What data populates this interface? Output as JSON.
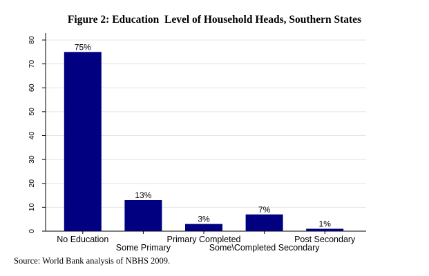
{
  "chart_data": {
    "type": "bar",
    "title": "Figure 2: Education  Level of Household Heads, Southern States",
    "categories": [
      "No Education",
      "Some Primary",
      "Primary Completed",
      "Some\\Completed Secondary",
      "Post Secondary"
    ],
    "values": [
      75,
      13,
      3,
      7,
      1
    ],
    "data_labels": [
      "75%",
      "13%",
      "3%",
      "7%",
      "1%"
    ],
    "yticks": [
      0,
      10,
      20,
      30,
      40,
      50,
      60,
      70,
      80
    ],
    "ylim": [
      0,
      80
    ],
    "xlabel": "",
    "ylabel": "",
    "grid": true,
    "bar_color": "#000080"
  },
  "source": "Source: World Bank analysis of NBHS 2009."
}
